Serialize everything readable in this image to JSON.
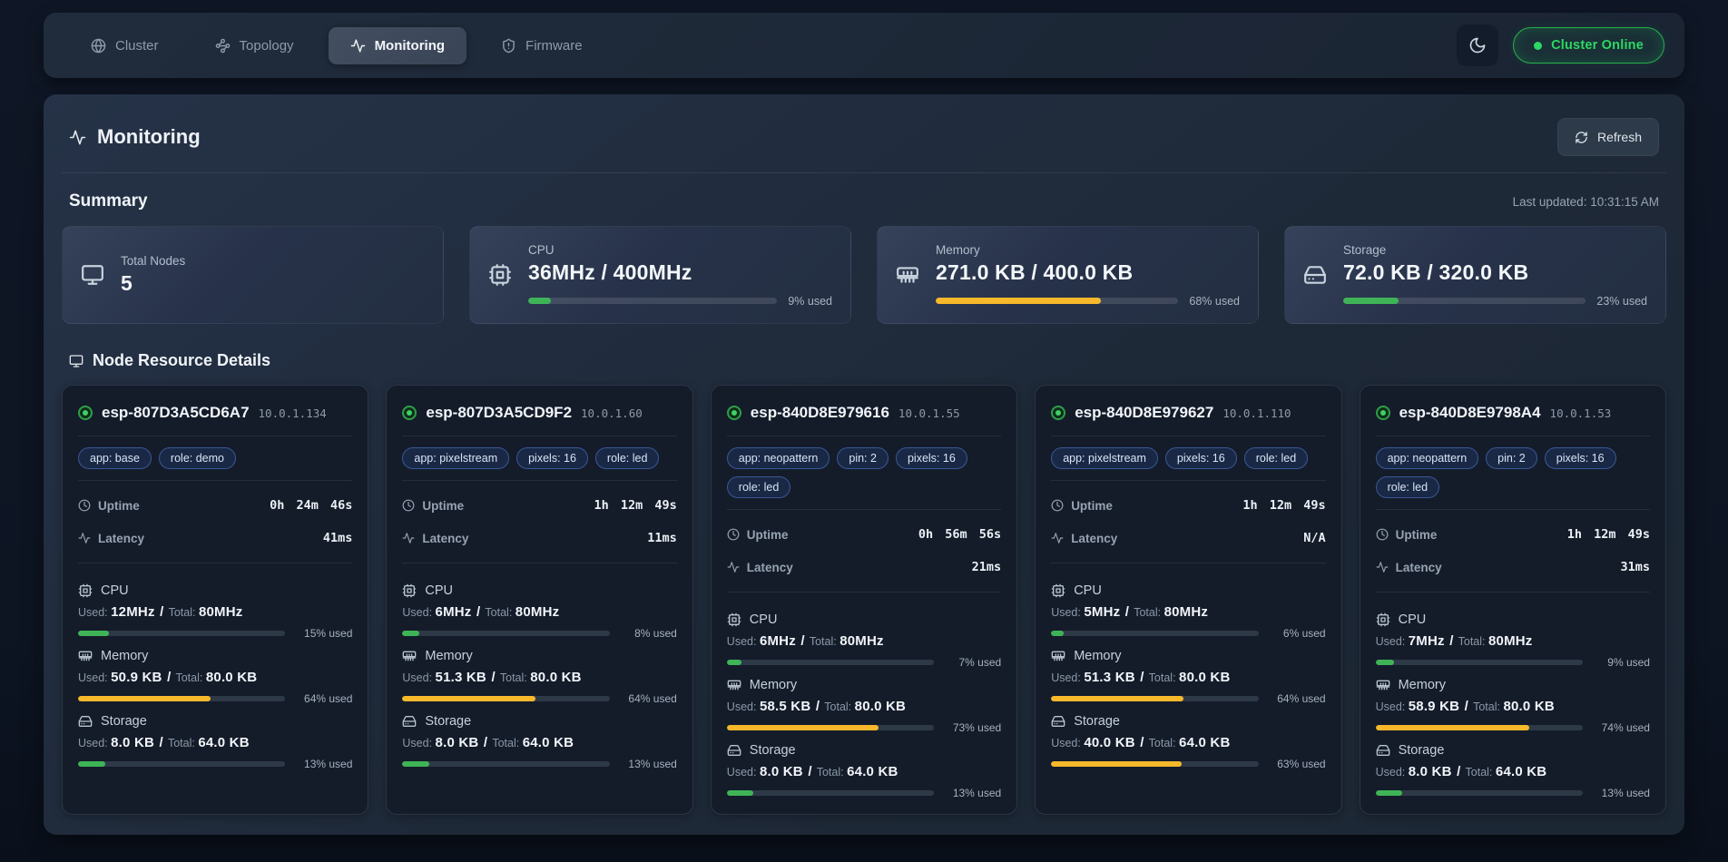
{
  "nav": {
    "tabs": [
      {
        "label": "Cluster",
        "icon": "globe",
        "active": false
      },
      {
        "label": "Topology",
        "icon": "waypoints",
        "active": false
      },
      {
        "label": "Monitoring",
        "icon": "activity",
        "active": true
      },
      {
        "label": "Firmware",
        "icon": "shield-alert",
        "active": false
      }
    ],
    "theme_toggle_icon": "moon",
    "status_badge": "Cluster Online"
  },
  "page": {
    "title": "Monitoring",
    "refresh_label": "Refresh"
  },
  "summary": {
    "heading": "Summary",
    "last_updated": "Last updated: 10:31:15 AM",
    "cards": [
      {
        "label": "Total Nodes",
        "icon": "monitor",
        "value": "5",
        "has_bar": false
      },
      {
        "label": "CPU",
        "icon": "cpu",
        "value": "36MHz / 400MHz",
        "has_bar": true,
        "percent": 9,
        "percent_label": "9% used",
        "bar_color": "green"
      },
      {
        "label": "Memory",
        "icon": "memory",
        "value": "271.0 KB / 400.0 KB",
        "has_bar": true,
        "percent": 68,
        "percent_label": "68% used",
        "bar_color": "yellow"
      },
      {
        "label": "Storage",
        "icon": "harddrive",
        "value": "72.0 KB / 320.0 KB",
        "has_bar": true,
        "percent": 23,
        "percent_label": "23% used",
        "bar_color": "green"
      }
    ]
  },
  "nodes": {
    "heading": "Node Resource Details",
    "labels": {
      "uptime": "Uptime",
      "latency": "Latency",
      "used": "Used:",
      "total": "Total:",
      "separator": "/"
    },
    "cards": [
      {
        "name": "esp-807D3A5CD6A7",
        "ip": "10.0.1.134",
        "status": "online",
        "tags": [
          "app: base",
          "role: demo"
        ],
        "uptime": "0h 24m 46s",
        "latency": "41ms",
        "metrics": [
          {
            "key": "cpu",
            "label": "CPU",
            "icon": "cpu",
            "used": "12MHz",
            "total": "80MHz",
            "percent": 15,
            "percent_label": "15% used",
            "bar_color": "green"
          },
          {
            "key": "memory",
            "label": "Memory",
            "icon": "memory",
            "used": "50.9 KB",
            "total": "80.0 KB",
            "percent": 64,
            "percent_label": "64% used",
            "bar_color": "yellow"
          },
          {
            "key": "storage",
            "label": "Storage",
            "icon": "harddrive",
            "used": "8.0 KB",
            "total": "64.0 KB",
            "percent": 13,
            "percent_label": "13% used",
            "bar_color": "green"
          }
        ]
      },
      {
        "name": "esp-807D3A5CD9F2",
        "ip": "10.0.1.60",
        "status": "online",
        "tags": [
          "app: pixelstream",
          "pixels: 16",
          "role: led"
        ],
        "uptime": "1h 12m 49s",
        "latency": "11ms",
        "metrics": [
          {
            "key": "cpu",
            "label": "CPU",
            "icon": "cpu",
            "used": "6MHz",
            "total": "80MHz",
            "percent": 8,
            "percent_label": "8% used",
            "bar_color": "green"
          },
          {
            "key": "memory",
            "label": "Memory",
            "icon": "memory",
            "used": "51.3 KB",
            "total": "80.0 KB",
            "percent": 64,
            "percent_label": "64% used",
            "bar_color": "yellow"
          },
          {
            "key": "storage",
            "label": "Storage",
            "icon": "harddrive",
            "used": "8.0 KB",
            "total": "64.0 KB",
            "percent": 13,
            "percent_label": "13% used",
            "bar_color": "green"
          }
        ]
      },
      {
        "name": "esp-840D8E979616",
        "ip": "10.0.1.55",
        "status": "online",
        "tags": [
          "app: neopattern",
          "pin: 2",
          "pixels: 16",
          "role: led"
        ],
        "uptime": "0h 56m 56s",
        "latency": "21ms",
        "metrics": [
          {
            "key": "cpu",
            "label": "CPU",
            "icon": "cpu",
            "used": "6MHz",
            "total": "80MHz",
            "percent": 7,
            "percent_label": "7% used",
            "bar_color": "green"
          },
          {
            "key": "memory",
            "label": "Memory",
            "icon": "memory",
            "used": "58.5 KB",
            "total": "80.0 KB",
            "percent": 73,
            "percent_label": "73% used",
            "bar_color": "yellow"
          },
          {
            "key": "storage",
            "label": "Storage",
            "icon": "harddrive",
            "used": "8.0 KB",
            "total": "64.0 KB",
            "percent": 13,
            "percent_label": "13% used",
            "bar_color": "green"
          }
        ]
      },
      {
        "name": "esp-840D8E979627",
        "ip": "10.0.1.110",
        "status": "online",
        "tags": [
          "app: pixelstream",
          "pixels: 16",
          "role: led"
        ],
        "uptime": "1h 12m 49s",
        "latency": "N/A",
        "metrics": [
          {
            "key": "cpu",
            "label": "CPU",
            "icon": "cpu",
            "used": "5MHz",
            "total": "80MHz",
            "percent": 6,
            "percent_label": "6% used",
            "bar_color": "green"
          },
          {
            "key": "memory",
            "label": "Memory",
            "icon": "memory",
            "used": "51.3 KB",
            "total": "80.0 KB",
            "percent": 64,
            "percent_label": "64% used",
            "bar_color": "yellow"
          },
          {
            "key": "storage",
            "label": "Storage",
            "icon": "harddrive",
            "used": "40.0 KB",
            "total": "64.0 KB",
            "percent": 63,
            "percent_label": "63% used",
            "bar_color": "yellow"
          }
        ]
      },
      {
        "name": "esp-840D8E9798A4",
        "ip": "10.0.1.53",
        "status": "online",
        "tags": [
          "app: neopattern",
          "pin: 2",
          "pixels: 16",
          "role: led"
        ],
        "uptime": "1h 12m 49s",
        "latency": "31ms",
        "metrics": [
          {
            "key": "cpu",
            "label": "CPU",
            "icon": "cpu",
            "used": "7MHz",
            "total": "80MHz",
            "percent": 9,
            "percent_label": "9% used",
            "bar_color": "green"
          },
          {
            "key": "memory",
            "label": "Memory",
            "icon": "memory",
            "used": "58.9 KB",
            "total": "80.0 KB",
            "percent": 74,
            "percent_label": "74% used",
            "bar_color": "yellow"
          },
          {
            "key": "storage",
            "label": "Storage",
            "icon": "harddrive",
            "used": "8.0 KB",
            "total": "64.0 KB",
            "percent": 13,
            "percent_label": "13% used",
            "bar_color": "green"
          }
        ]
      }
    ]
  },
  "colors": {
    "accent_green": "#2bd963",
    "bar_green": "#3fb457",
    "bar_yellow": "#f7b82a",
    "tag_border": "#3a5796"
  }
}
